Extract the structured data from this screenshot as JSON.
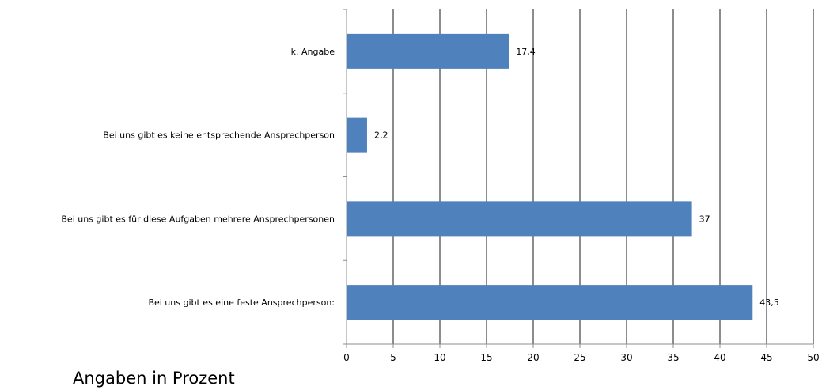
{
  "chart_data": {
    "type": "bar",
    "orientation": "horizontal",
    "categories": [
      "k. Angabe",
      "Bei uns gibt es keine entsprechende Ansprechperson",
      "Bei uns gibt es für diese Aufgaben mehrere Ansprechpersonen",
      "Bei uns gibt es eine feste Ansprechperson:"
    ],
    "values": [
      17.4,
      2.2,
      37,
      43.5
    ],
    "value_labels": [
      "17,4",
      "2,2",
      "37",
      "43,5"
    ],
    "xlim": [
      0,
      50
    ],
    "xticks": [
      0,
      5,
      10,
      15,
      20,
      25,
      30,
      35,
      40,
      45,
      50
    ],
    "grid": "vertical",
    "bar_color": "#4f81bd",
    "caption": "Angaben in Prozent"
  }
}
